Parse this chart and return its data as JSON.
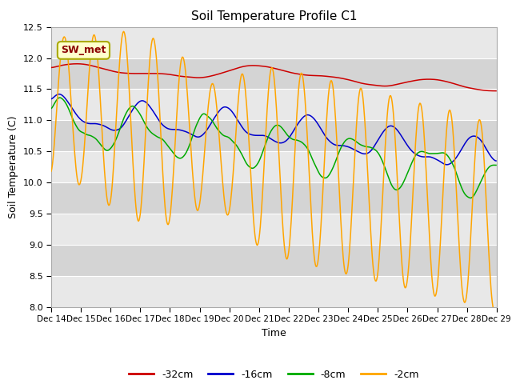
{
  "title": "Soil Temperature Profile C1",
  "xlabel": "Time",
  "ylabel": "Soil Temperature (C)",
  "ylim": [
    8.0,
    12.5
  ],
  "yticks": [
    8.0,
    8.5,
    9.0,
    9.5,
    10.0,
    10.5,
    11.0,
    11.5,
    12.0,
    12.5
  ],
  "annotation_text": "SW_met",
  "annotation_color": "#8B0000",
  "annotation_bg": "#FFFFCC",
  "annotation_border": "#AAAA00",
  "legend_labels": [
    "-32cm",
    "-16cm",
    "-8cm",
    "-2cm"
  ],
  "legend_colors": [
    "#CC0000",
    "#0000CC",
    "#00AA00",
    "#FFA500"
  ],
  "stripe_colors": [
    "#E8E8E8",
    "#D4D4D4"
  ],
  "grid_color": "#FFFFFF",
  "linewidth": 1.1,
  "figsize": [
    6.4,
    4.8
  ],
  "dpi": 100
}
